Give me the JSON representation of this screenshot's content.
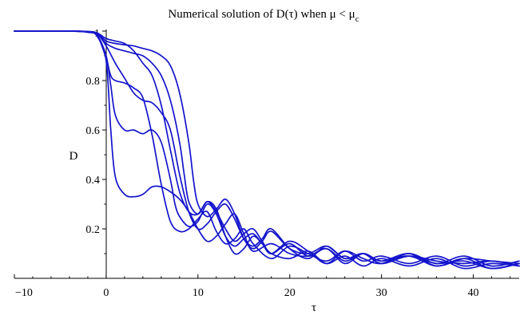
{
  "chart_data": {
    "type": "line",
    "title": "Numerical solution of D(τ)  when μ < μ",
    "title_subscript": "c",
    "xlabel": "τ",
    "ylabel": "D",
    "xlim": [
      -10,
      45
    ],
    "ylim": [
      0,
      1.0
    ],
    "x_ticks": [
      -10,
      0,
      10,
      20,
      30,
      40
    ],
    "x_tick_labels": [
      "−10",
      "0",
      "10",
      "20",
      "30",
      "40"
    ],
    "y_ticks": [
      0.2,
      0.4,
      0.6,
      0.8,
      1
    ],
    "y_tick_labels": [
      "0.2",
      "0.4",
      "0.6",
      "0.8",
      "1"
    ],
    "grid": false,
    "line_color": "#1414cc",
    "series": [
      {
        "x": [
          -10,
          -4,
          -2,
          -1,
          0,
          0.5,
          1,
          2,
          3,
          4,
          5,
          6,
          7,
          7.5,
          8,
          9,
          10,
          11,
          12,
          13,
          14,
          15,
          16,
          17,
          18,
          20,
          22,
          24,
          26,
          28,
          30,
          33,
          36,
          39,
          42,
          45
        ],
        "y": [
          1,
          1,
          0.997,
          0.985,
          0.9,
          0.78,
          0.66,
          0.6,
          0.6,
          0.585,
          0.6,
          0.55,
          0.4,
          0.3,
          0.25,
          0.21,
          0.23,
          0.3,
          0.26,
          0.17,
          0.13,
          0.16,
          0.18,
          0.14,
          0.1,
          0.15,
          0.11,
          0.06,
          0.11,
          0.08,
          0.06,
          0.1,
          0.06,
          0.09,
          0.05,
          0.07
        ]
      },
      {
        "x": [
          -10,
          -4,
          -2,
          -1,
          0,
          0.5,
          1,
          2,
          3,
          4,
          5,
          6,
          7,
          8,
          9,
          10,
          11,
          12,
          13,
          14,
          15,
          16,
          18,
          20,
          22,
          24,
          26,
          28,
          30,
          33,
          36,
          39,
          42,
          45
        ],
        "y": [
          1,
          1,
          0.995,
          0.98,
          0.88,
          0.6,
          0.41,
          0.34,
          0.33,
          0.34,
          0.37,
          0.37,
          0.35,
          0.32,
          0.27,
          0.2,
          0.15,
          0.17,
          0.22,
          0.26,
          0.18,
          0.11,
          0.14,
          0.1,
          0.09,
          0.12,
          0.06,
          0.1,
          0.07,
          0.09,
          0.05,
          0.08,
          0.04,
          0.06
        ]
      },
      {
        "x": [
          -10,
          -4,
          -2,
          -1,
          0,
          0.5,
          1,
          2,
          3,
          4,
          5,
          6,
          7,
          8,
          9,
          10,
          11,
          12,
          13,
          14,
          15,
          16,
          18,
          20,
          22,
          24,
          26,
          28,
          30,
          33,
          36,
          39,
          42,
          45
        ],
        "y": [
          1,
          1,
          0.997,
          0.985,
          0.89,
          0.82,
          0.8,
          0.79,
          0.77,
          0.73,
          0.58,
          0.38,
          0.23,
          0.19,
          0.2,
          0.24,
          0.27,
          0.19,
          0.14,
          0.16,
          0.2,
          0.14,
          0.08,
          0.13,
          0.1,
          0.07,
          0.11,
          0.07,
          0.09,
          0.06,
          0.09,
          0.05,
          0.07,
          0.05
        ]
      },
      {
        "x": [
          -10,
          -4,
          -2,
          -1,
          0,
          1,
          2,
          3,
          4,
          5,
          6,
          7,
          8,
          9,
          10,
          11,
          12,
          13,
          14,
          15,
          16,
          17,
          18,
          20,
          22,
          24,
          26,
          28,
          30,
          33,
          36,
          39,
          42,
          45
        ],
        "y": [
          1,
          1,
          0.998,
          0.99,
          0.94,
          0.87,
          0.81,
          0.75,
          0.72,
          0.71,
          0.67,
          0.6,
          0.42,
          0.27,
          0.2,
          0.22,
          0.27,
          0.3,
          0.24,
          0.16,
          0.13,
          0.16,
          0.2,
          0.12,
          0.08,
          0.13,
          0.08,
          0.1,
          0.07,
          0.1,
          0.05,
          0.08,
          0.07,
          0.06
        ]
      },
      {
        "x": [
          -10,
          -4,
          -2,
          -1,
          0,
          1,
          2,
          3,
          4,
          5,
          6,
          7,
          8,
          8.5,
          9,
          10,
          11,
          12,
          13,
          14,
          15,
          16,
          17,
          18,
          20,
          22,
          24,
          26,
          28,
          30,
          33,
          36,
          39,
          42,
          45
        ],
        "y": [
          1,
          1,
          0.998,
          0.99,
          0.95,
          0.93,
          0.92,
          0.91,
          0.9,
          0.87,
          0.82,
          0.72,
          0.55,
          0.42,
          0.31,
          0.26,
          0.31,
          0.27,
          0.2,
          0.15,
          0.18,
          0.2,
          0.15,
          0.1,
          0.14,
          0.09,
          0.12,
          0.07,
          0.1,
          0.06,
          0.09,
          0.06,
          0.07,
          0.04,
          0.06
        ]
      },
      {
        "x": [
          -10,
          -4,
          -2,
          -1,
          0,
          1,
          2,
          3,
          4,
          5,
          6,
          7,
          8,
          9,
          9.5,
          10,
          11,
          12,
          13,
          14,
          15,
          16,
          17,
          18,
          20,
          22,
          24,
          26,
          28,
          30,
          33,
          36,
          39,
          42,
          45
        ],
        "y": [
          1,
          1,
          0.998,
          0.992,
          0.96,
          0.95,
          0.945,
          0.94,
          0.93,
          0.92,
          0.9,
          0.86,
          0.75,
          0.55,
          0.4,
          0.3,
          0.25,
          0.28,
          0.32,
          0.26,
          0.16,
          0.12,
          0.15,
          0.19,
          0.12,
          0.1,
          0.13,
          0.08,
          0.1,
          0.06,
          0.09,
          0.07,
          0.06,
          0.07,
          0.05
        ]
      },
      {
        "x": [
          -10,
          -4,
          -2,
          -1,
          0,
          1,
          2,
          3,
          4,
          5,
          6,
          7,
          8,
          9,
          10,
          11,
          12,
          13,
          14,
          15,
          16,
          17,
          18,
          20,
          22,
          24,
          26,
          28,
          30,
          33,
          36,
          39,
          42,
          45
        ],
        "y": [
          1,
          1,
          0.998,
          0.993,
          0.97,
          0.96,
          0.95,
          0.92,
          0.87,
          0.82,
          0.7,
          0.52,
          0.35,
          0.27,
          0.26,
          0.31,
          0.28,
          0.17,
          0.1,
          0.12,
          0.17,
          0.14,
          0.1,
          0.08,
          0.11,
          0.06,
          0.09,
          0.05,
          0.08,
          0.05,
          0.08,
          0.04,
          0.06,
          0.05
        ]
      }
    ]
  }
}
